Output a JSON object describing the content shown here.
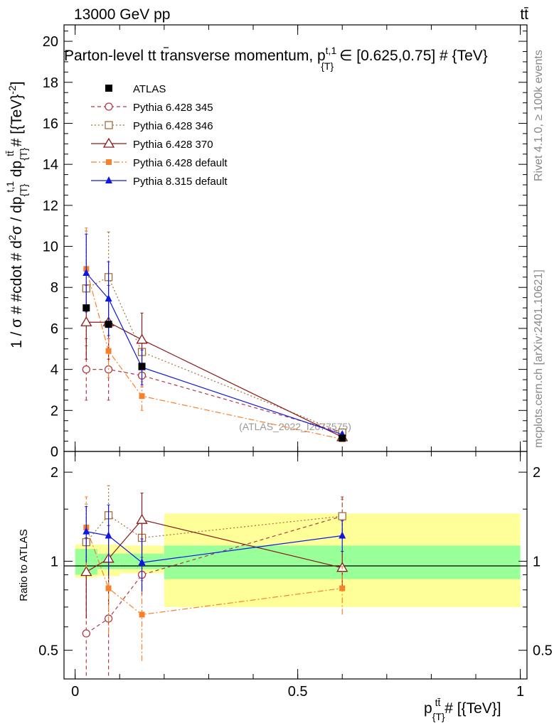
{
  "header": {
    "energy": "13000 GeV pp",
    "process": "tt̄"
  },
  "chart_data": {
    "type": "scatter",
    "title": "Parton-level t̄t transverse momentum, p_{T}^{t,1} ∈ [0.625,0.75] # {TeV}",
    "title_parts": {
      "pre": "Parton-level t",
      "tbar": "t",
      "mid": " transverse momentum, p",
      "sup": "t,1",
      "sub": "{T}",
      "post": "∈ [0.625,0.75] # {TeV}"
    },
    "ylabel": "1 / σ # #cdot # d²σ / dp_{T}^{t,1} dp_{T}^{tt̄} # [{TeV}^-2]",
    "ylabel_parts": {
      "a": "1 / σ # #cdot # d",
      "b": "2",
      "c": "σ / dp",
      "d": "{T}",
      "e": "t,1",
      "f": " dp",
      "g": "{T}",
      "h": "tt̄",
      "i": " # [{TeV}",
      "j": "-2",
      "k": "]"
    },
    "xlabel": "p_{T}^{tt̄} # [{TeV}]",
    "xlabel_parts": {
      "a": "p",
      "b": "{T}",
      "c": "tt̄",
      "d": " # [{TeV}]"
    },
    "ratio_ylabel": "Ratio to ATLAS",
    "xlim": [
      -0.025,
      1.015
    ],
    "ylim": [
      0,
      20.8
    ],
    "ratio_ylim": [
      0.4,
      2.35
    ],
    "y_ticks": [
      "0",
      "2",
      "4",
      "6",
      "8",
      "10",
      "12",
      "14",
      "16",
      "18",
      "20"
    ],
    "x_ticks": [
      "0",
      "0.5",
      "1"
    ],
    "ratio_ticks": [
      "0.5",
      "1",
      "2"
    ],
    "watermark": "(ATLAS_2022_I2077575)",
    "side_text_1": "Rivet 4.1.0, ≥ 100k events",
    "side_text_2": "mcplots.cern.ch [arXiv:2401.10621]",
    "bins": [
      [
        0,
        0.05
      ],
      [
        0.05,
        0.1
      ],
      [
        0.1,
        0.2
      ],
      [
        0.2,
        1.0
      ]
    ],
    "x": [
      0.025,
      0.075,
      0.15,
      0.6
    ],
    "atlas": {
      "name": "ATLAS",
      "values": [
        7.0,
        6.2,
        4.15,
        0.65
      ],
      "band_stat": [
        [
          0.9,
          1.1
        ],
        [
          0.94,
          1.06
        ],
        [
          0.94,
          1.06
        ],
        [
          0.87,
          1.13
        ]
      ],
      "band_total": [
        [
          0.88,
          1.14
        ],
        [
          0.89,
          1.14
        ],
        [
          0.91,
          1.13
        ],
        [
          0.7,
          1.45
        ]
      ]
    },
    "series": [
      {
        "name": "Pythia 6.428 345",
        "color": "#b03a48",
        "marker": "circle-open",
        "dash": "5,4",
        "values": [
          4.0,
          4.0,
          3.7,
          0.92
        ],
        "err": [
          1.5,
          1.5,
          0.55,
          0.15
        ],
        "ratio": [
          0.57,
          0.64,
          0.9,
          1.42
        ],
        "ratio_err": [
          0.36,
          0.36,
          0.13,
          0.23
        ]
      },
      {
        "name": "Pythia 6.428 346",
        "color": "#a0703a",
        "marker": "square-open",
        "dash": "2,3",
        "values": [
          7.95,
          8.5,
          4.85,
          0.92
        ],
        "err": [
          2.8,
          2.2,
          0.75,
          0.12
        ],
        "ratio": [
          1.16,
          1.43,
          1.2,
          1.42
        ],
        "ratio_err": [
          0.4,
          0.37,
          0.17,
          0.2
        ]
      },
      {
        "name": "Pythia 6.428 370",
        "color": "#8b1a1a",
        "marker": "triangle-open",
        "dash": "",
        "values": [
          6.3,
          6.3,
          5.45,
          0.7
        ],
        "err": [
          1.8,
          1.8,
          1.3,
          0.1
        ],
        "ratio": [
          0.92,
          1.02,
          1.38,
          0.95
        ],
        "ratio_err": [
          0.28,
          0.3,
          0.32,
          0.13
        ]
      },
      {
        "name": "Pythia 6.428 default",
        "color": "#f7802a",
        "marker": "square-filled",
        "dash": "8,3,2,3",
        "values": [
          8.9,
          4.9,
          2.7,
          0.6
        ],
        "err": [
          2.0,
          1.3,
          0.7,
          0.1
        ],
        "ratio": [
          1.3,
          0.81,
          0.66,
          0.81
        ],
        "ratio_err": [
          0.35,
          0.24,
          0.2,
          0.15
        ]
      },
      {
        "name": "Pythia 8.315 default",
        "color": "#0f17e0",
        "marker": "triangle-filled",
        "dash": "",
        "values": [
          8.7,
          7.45,
          4.1,
          0.83
        ],
        "err": [
          1.9,
          1.8,
          0.85,
          0.1
        ],
        "ratio": [
          1.26,
          1.22,
          0.99,
          1.22
        ],
        "ratio_err": [
          0.27,
          0.33,
          0.2,
          0.15
        ]
      }
    ]
  }
}
